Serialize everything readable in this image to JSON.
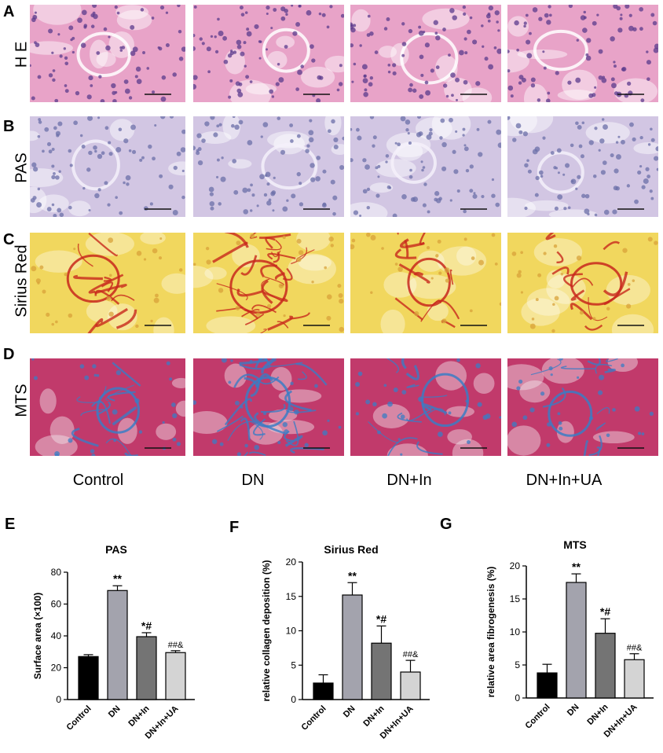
{
  "panel_letters": [
    "A",
    "B",
    "C",
    "D",
    "E",
    "F",
    "G"
  ],
  "row_labels": [
    "H E",
    "PAS",
    "Sirius Red",
    "MTS"
  ],
  "group_labels": [
    "Control",
    "DN",
    "DN+In",
    "DN+In+UA"
  ],
  "colors": {
    "he_bg": "#e8a3c8",
    "he_nuclei": "#5b3b8c",
    "pas_bg": "#d2c6e3",
    "pas_nuclei": "#6b6fa8",
    "sirius_bg": "#f1d75e",
    "sirius_fiber": "#c8281c",
    "mts_bg": "#c13a6b",
    "mts_collagen": "#3b7cc4",
    "bar_control": "#000000",
    "bar_dn": "#a3a3ad",
    "bar_dnin": "#747474",
    "bar_dninua": "#d4d4d4"
  },
  "chart_data": [
    {
      "type": "bar",
      "title": "PAS",
      "ylabel": "Surface area (×100)",
      "xlabel": "",
      "categories": [
        "Control",
        "DN",
        "DN+In",
        "DN+In+UA"
      ],
      "values": [
        27,
        68.5,
        39.5,
        29.5
      ],
      "errors": [
        1.2,
        3.0,
        2.5,
        1.2
      ],
      "annotations": [
        "",
        "**",
        "*#",
        "##&"
      ],
      "ylim": [
        0,
        80
      ],
      "yticks": [
        0,
        20,
        40,
        60,
        80
      ],
      "grid": false
    },
    {
      "type": "bar",
      "title": "Sirius Red",
      "ylabel": "relative collagen deposition (%)",
      "xlabel": "",
      "categories": [
        "Control",
        "DN",
        "DN+In",
        "DN+In+UA"
      ],
      "values": [
        2.4,
        15.2,
        8.2,
        4.0
      ],
      "errors": [
        1.2,
        1.8,
        2.5,
        1.7
      ],
      "annotations": [
        "",
        "**",
        "*#",
        "##&"
      ],
      "ylim": [
        0,
        20
      ],
      "yticks": [
        0,
        5,
        10,
        15,
        20
      ],
      "grid": false
    },
    {
      "type": "bar",
      "title": "MTS",
      "ylabel": "relative area fibrogenesis (%)",
      "xlabel": "",
      "categories": [
        "Control",
        "DN",
        "DN+In",
        "DN+In+UA"
      ],
      "values": [
        3.8,
        17.5,
        9.8,
        5.8
      ],
      "errors": [
        1.3,
        1.3,
        2.2,
        0.9
      ],
      "annotations": [
        "",
        "**",
        "*#",
        "##&"
      ],
      "ylim": [
        0,
        20
      ],
      "yticks": [
        0,
        5,
        10,
        15,
        20
      ],
      "grid": false
    }
  ]
}
